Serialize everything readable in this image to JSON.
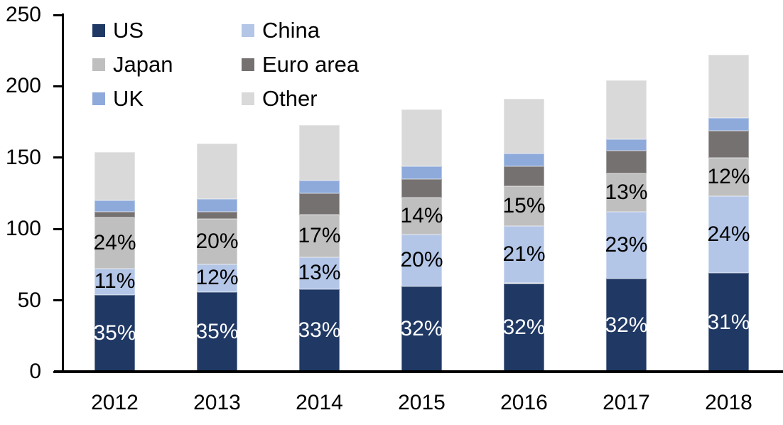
{
  "chart_data": {
    "type": "bar",
    "stacked": true,
    "title": "",
    "xlabel": "",
    "ylabel": "",
    "categories": [
      "2012",
      "2013",
      "2014",
      "2015",
      "2016",
      "2017",
      "2018"
    ],
    "ylim": [
      0,
      250
    ],
    "yticks": [
      0,
      50,
      100,
      150,
      200,
      250
    ],
    "grid": false,
    "legend_position": "top-left-inside",
    "series": [
      {
        "name": "US",
        "color": "#1F3864",
        "values": [
          54,
          56,
          58,
          60,
          62,
          65,
          69
        ],
        "percent_labels": [
          "35%",
          "35%",
          "33%",
          "32%",
          "32%",
          "32%",
          "31%"
        ],
        "label_color": "#FFFFFF"
      },
      {
        "name": "China",
        "color": "#B4C6E7",
        "values": [
          18,
          19,
          22,
          36,
          40,
          47,
          54
        ],
        "percent_labels": [
          "11%",
          "12%",
          "13%",
          "20%",
          "21%",
          "23%",
          "24%"
        ],
        "label_color": "#000000"
      },
      {
        "name": "Japan",
        "color": "#BFBFBF",
        "values": [
          36,
          32,
          30,
          26,
          28,
          27,
          27
        ],
        "percent_labels": [
          "24%",
          "20%",
          "17%",
          "14%",
          "15%",
          "13%",
          "12%"
        ],
        "label_color": "#000000"
      },
      {
        "name": "Euro area",
        "color": "#767171",
        "values": [
          4,
          5,
          15,
          13,
          14,
          16,
          19
        ]
      },
      {
        "name": "UK",
        "color": "#8EAADB",
        "values": [
          8,
          9,
          9,
          9,
          9,
          8,
          9
        ]
      },
      {
        "name": "Other",
        "color": "#D9D9D9",
        "values": [
          34,
          39,
          39,
          40,
          38,
          41,
          44
        ]
      }
    ],
    "totals": [
      154,
      160,
      173,
      184,
      191,
      204,
      222
    ]
  },
  "legend": {
    "rows": [
      [
        "US",
        "China"
      ],
      [
        "Japan",
        "Euro area"
      ],
      [
        "UK",
        "Other"
      ]
    ]
  }
}
